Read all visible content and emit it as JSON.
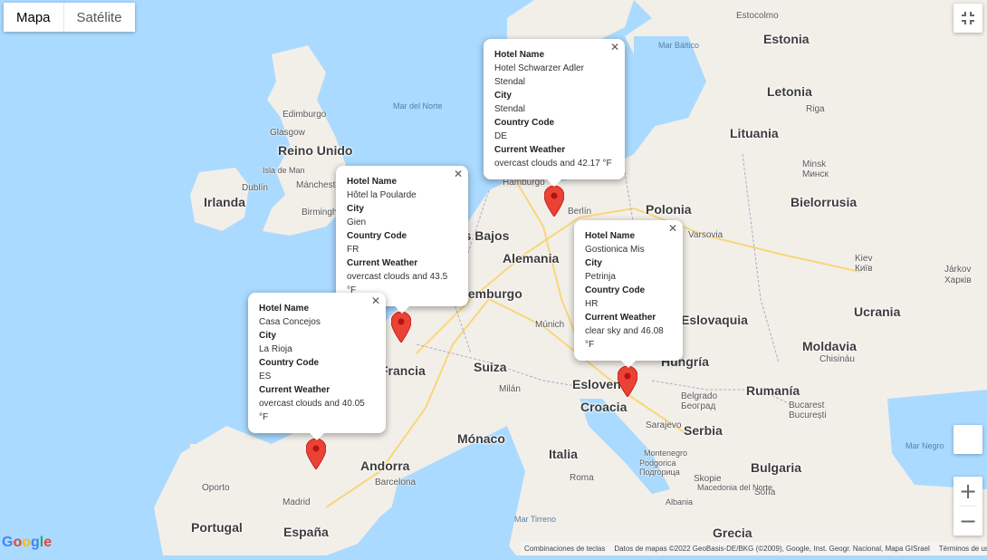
{
  "map_type": {
    "map_label": "Mapa",
    "satellite_label": "Satélite",
    "active": "map"
  },
  "seas": [
    "Mar del Norte",
    "Mar Báltico",
    "Mar Negro",
    "Mar Tirreno"
  ],
  "countries": [
    "Estonia",
    "Letonia",
    "Reino Unido",
    "Irlanda",
    "Lituania",
    "Polonia",
    "Bielorrusia",
    "Alemania",
    "Países Bajos",
    "Luxemburgo",
    "Ucrania",
    "Moldavia",
    "Hungría",
    "Eslovaquia",
    "Suiza",
    "Francia",
    "Eslovenia",
    "Croacia",
    "Rumanía",
    "Serbia",
    "Mónaco",
    "Italia",
    "Andorra",
    "Bulgaria",
    "Portugal",
    "España",
    "Grecia"
  ],
  "cities": [
    "Estocolmo",
    "Riga",
    "Edimburgo",
    "Glasgow",
    "Isla de Man",
    "Mánchester",
    "Dublín",
    "Birmingham",
    "Hamburgo",
    "Berlín",
    "Minsk",
    "Минск",
    "Varsovia",
    "Kiev",
    "Київ",
    "Járkov",
    "Харків",
    "Múnich",
    "Milán",
    "Chisináu",
    "Bucarest",
    "București",
    "Belgrado",
    "Београд",
    "Sarajevo",
    "Montenegro",
    "Podgorica",
    "Подгорица",
    "Sofía",
    "Skopie",
    "Macedonia del Norte",
    "Albania",
    "Barcelona",
    "Roma",
    "Oporto",
    "Madrid"
  ],
  "hotels": [
    {
      "hotel_label": "Hotel Name",
      "hotel": "Hotel Schwarzer Adler Stendal",
      "city_label": "City",
      "city": "Stendal",
      "cc_label": "Country Code",
      "cc": "DE",
      "weather_label": "Current Weather",
      "weather": "overcast clouds and 42.17 °F"
    },
    {
      "hotel_label": "Hotel Name",
      "hotel": "Hôtel la Poularde",
      "city_label": "City",
      "city": "Gien",
      "cc_label": "Country Code",
      "cc": "FR",
      "weather_label": "Current Weather",
      "weather": "overcast clouds and 43.5 °F"
    },
    {
      "hotel_label": "Hotel Name",
      "hotel": "Gostionica Mis",
      "city_label": "City",
      "city": "Petrinja",
      "cc_label": "Country Code",
      "cc": "HR",
      "weather_label": "Current Weather",
      "weather": "clear sky and 46.08 °F"
    },
    {
      "hotel_label": "Hotel Name",
      "hotel": "Casa Concejos",
      "city_label": "City",
      "city": "La Rioja",
      "cc_label": "Country Code",
      "cc": "ES",
      "weather_label": "Current Weather",
      "weather": "overcast clouds and 40.05 °F"
    }
  ],
  "footer": {
    "shortcuts": "Combinaciones de teclas",
    "attribution": "Datos de mapas ©2022 GeoBasis-DE/BKG (©2009), Google, Inst. Geogr. Nacional, Mapa GISrael",
    "terms": "Términos de uso"
  },
  "brand": "Google",
  "colors": {
    "land": "#f2efe9",
    "water": "#aadaff",
    "marker": "#ea4335",
    "border": "#b3a7c4",
    "road": "#f9d67a"
  }
}
